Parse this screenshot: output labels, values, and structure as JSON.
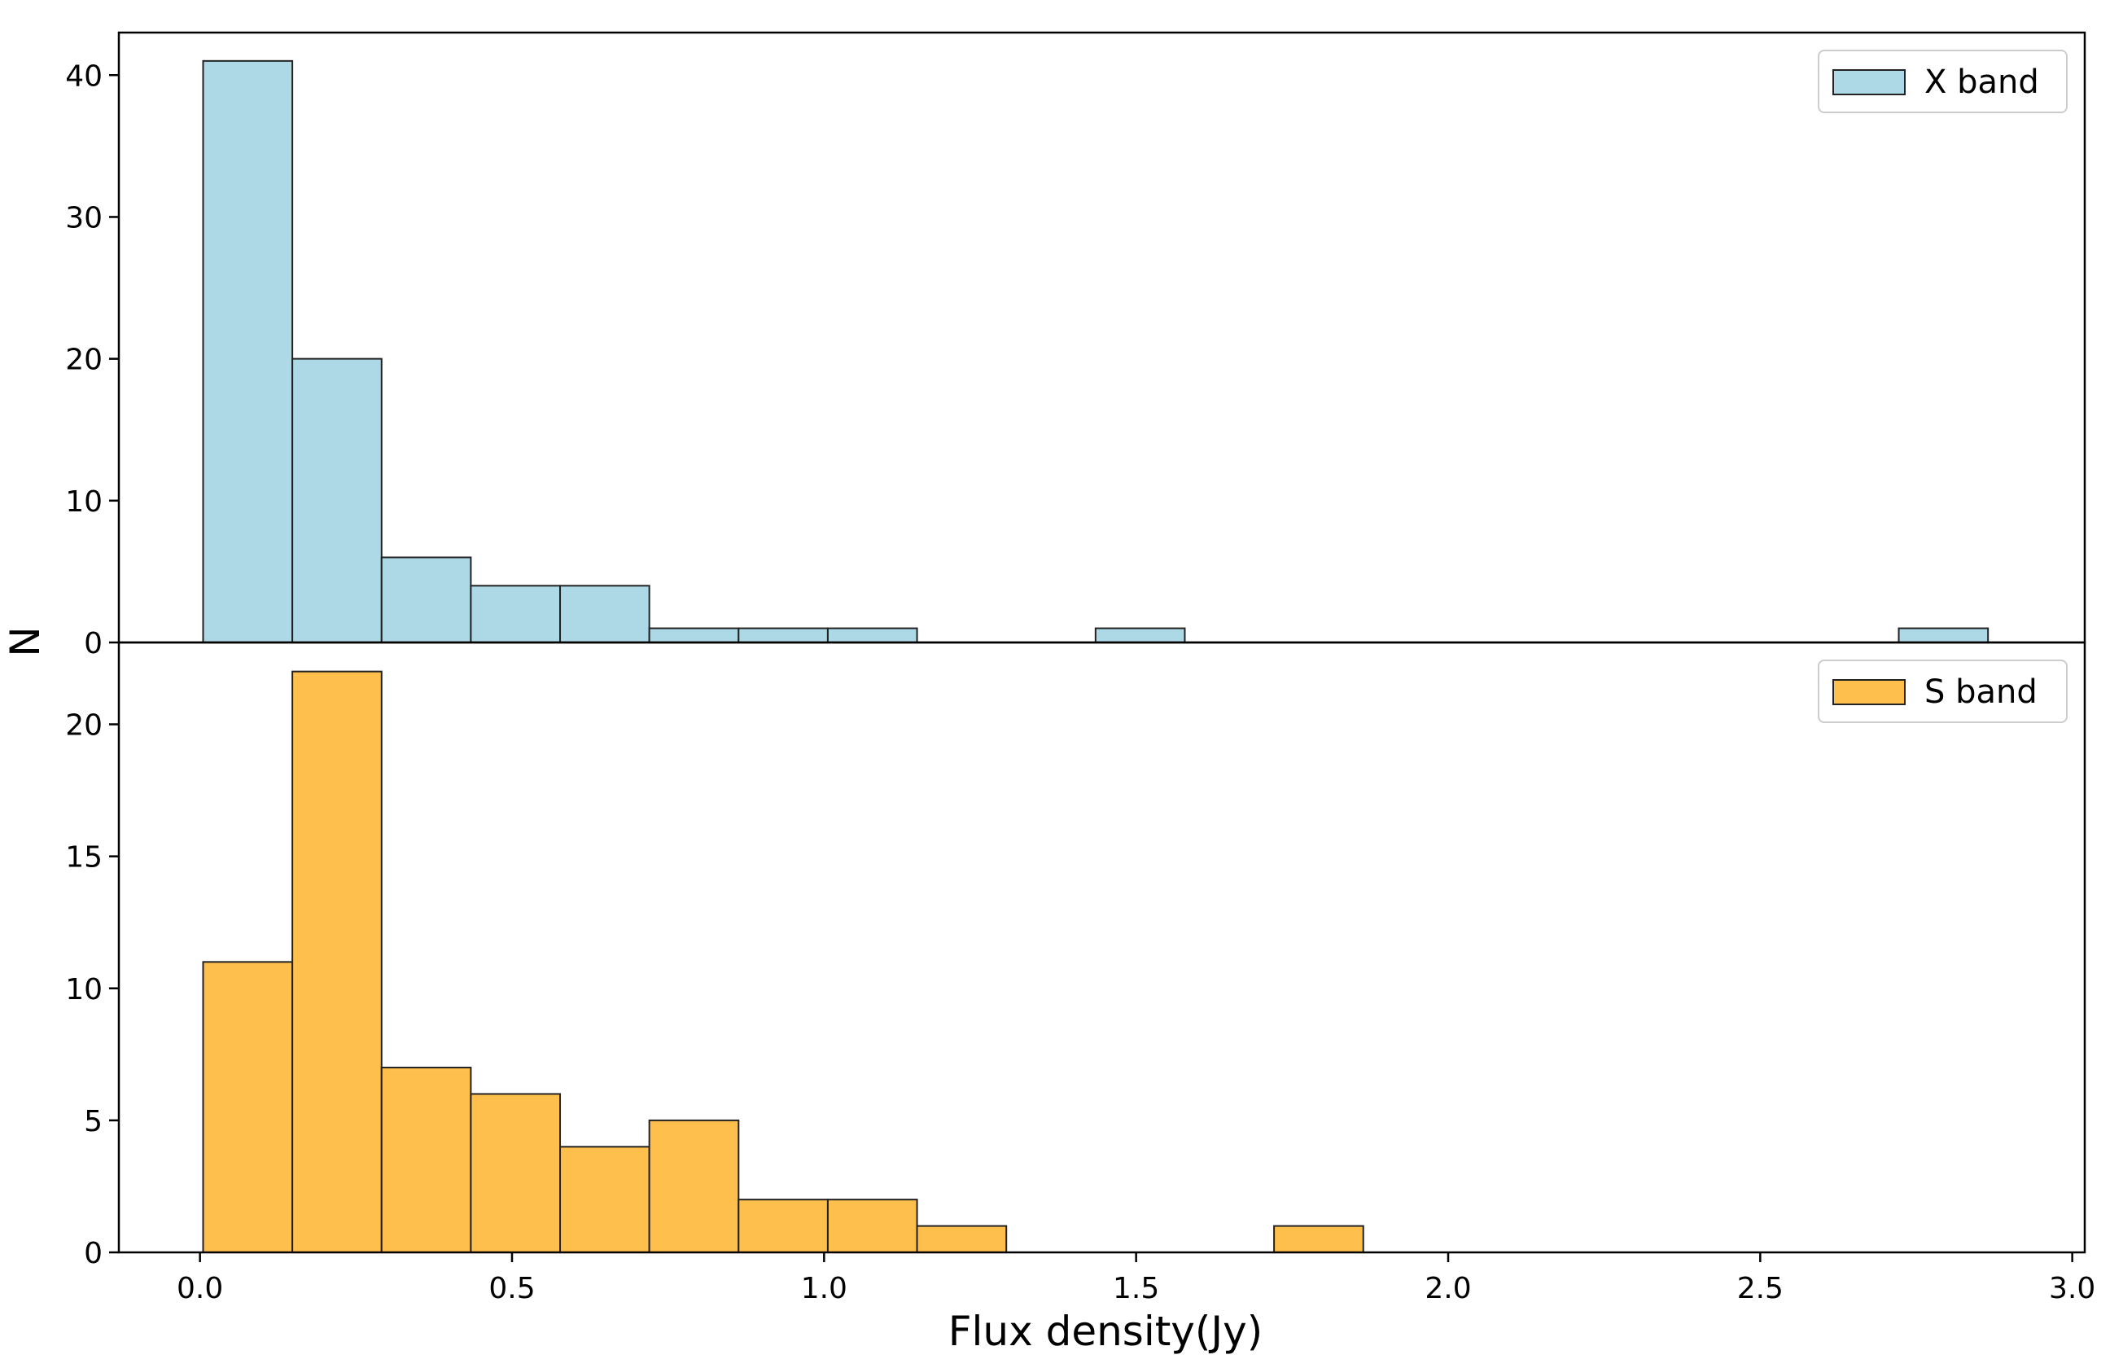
{
  "chart_data": {
    "type": "bar",
    "layout": "two vertically stacked histograms sharing the x axis",
    "xlabel": "Flux density(Jy)",
    "ylabel": "N",
    "xlim": [
      -0.13,
      3.02
    ],
    "xticks": [
      0.0,
      0.5,
      1.0,
      1.5,
      2.0,
      2.5,
      3.0
    ],
    "xtick_labels": [
      "0.0",
      "0.5",
      "1.0",
      "1.5",
      "2.0",
      "2.5",
      "3.0"
    ],
    "panels": [
      {
        "name": "X band",
        "legend": "X band",
        "legend_position": "top-right",
        "color": "#ADD8E6",
        "ylim": [
          0,
          43
        ],
        "yticks": [
          0,
          10,
          20,
          30,
          40
        ],
        "ytick_labels": [
          "0",
          "10",
          "20",
          "30",
          "40"
        ],
        "bins": [
          0.005,
          0.148,
          0.291,
          0.434,
          0.577,
          0.72,
          0.863,
          1.006,
          1.149,
          1.292,
          1.435,
          1.578,
          1.721,
          1.864,
          2.007,
          2.15,
          2.293,
          2.436,
          2.579,
          2.722,
          2.865
        ],
        "counts": [
          41,
          20,
          6,
          4,
          4,
          1,
          1,
          1,
          0,
          0,
          1,
          0,
          0,
          0,
          0,
          0,
          0,
          0,
          0,
          1
        ]
      },
      {
        "name": "S band",
        "legend": "S band",
        "legend_position": "top-right",
        "color": "#FFBF4C",
        "ylim": [
          0,
          23.1
        ],
        "yticks": [
          0,
          5,
          10,
          15,
          20
        ],
        "ytick_labels": [
          "0",
          "5",
          "10",
          "15",
          "20"
        ],
        "bins": [
          0.005,
          0.148,
          0.291,
          0.434,
          0.577,
          0.72,
          0.863,
          1.006,
          1.149,
          1.292,
          1.435,
          1.578,
          1.721,
          1.864
        ],
        "counts": [
          11,
          22,
          7,
          6,
          4,
          5,
          2,
          2,
          1,
          0,
          0,
          0,
          1
        ]
      }
    ]
  }
}
